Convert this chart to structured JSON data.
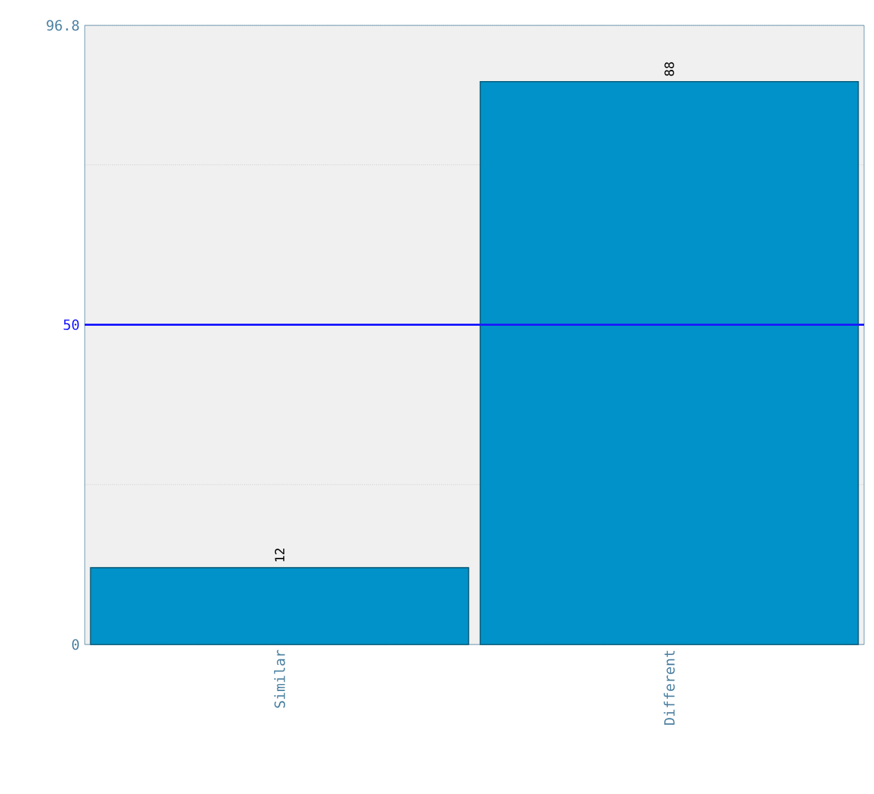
{
  "chart_data": {
    "type": "bar",
    "categories": [
      "Similar",
      "Different"
    ],
    "values": [
      12,
      88
    ],
    "color": "#0092c8",
    "ylim": [
      0,
      96.8
    ],
    "yticks": [
      0,
      {
        "value": 25,
        "label": null
      },
      50,
      {
        "value": 75,
        "label": null
      },
      96.8
    ],
    "grid": "y",
    "data_labels": true,
    "ref_lines": [
      {
        "axis": "y",
        "value": 50,
        "color": "#1a1aff"
      }
    ]
  }
}
